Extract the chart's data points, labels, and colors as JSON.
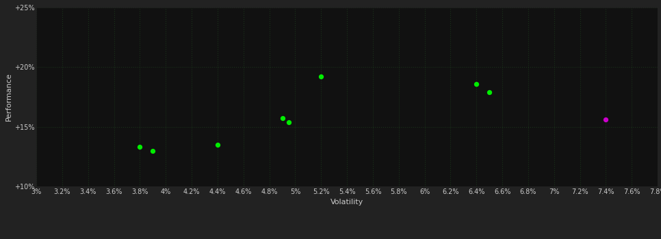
{
  "background_color": "#222222",
  "plot_bg_color": "#111111",
  "grid_color": "#1a321a",
  "text_color": "#cccccc",
  "xlabel": "Volatility",
  "ylabel": "Performance",
  "xlim": [
    0.03,
    0.078
  ],
  "ylim": [
    0.1,
    0.25
  ],
  "xticks": [
    0.03,
    0.032,
    0.034,
    0.036,
    0.038,
    0.04,
    0.042,
    0.044,
    0.046,
    0.048,
    0.05,
    0.052,
    0.054,
    0.056,
    0.058,
    0.06,
    0.062,
    0.064,
    0.066,
    0.068,
    0.07,
    0.072,
    0.074,
    0.076,
    0.078
  ],
  "xtick_labels": [
    "3%",
    "3.2%",
    "3.4%",
    "3.6%",
    "3.8%",
    "4%",
    "4.2%",
    "4.4%",
    "4.6%",
    "4.8%",
    "5%",
    "5.2%",
    "5.4%",
    "5.6%",
    "5.8%",
    "6%",
    "6.2%",
    "6.4%",
    "6.6%",
    "6.8%",
    "7%",
    "7.2%",
    "7.4%",
    "7.6%",
    "7.8%"
  ],
  "yticks": [
    0.1,
    0.15,
    0.2,
    0.25
  ],
  "ytick_labels": [
    "+10%",
    "+15%",
    "+20%",
    "+25%"
  ],
  "green_points": [
    [
      0.038,
      0.133
    ],
    [
      0.039,
      0.13
    ],
    [
      0.044,
      0.135
    ],
    [
      0.049,
      0.157
    ],
    [
      0.0495,
      0.154
    ],
    [
      0.052,
      0.192
    ],
    [
      0.064,
      0.186
    ],
    [
      0.065,
      0.179
    ]
  ],
  "magenta_points": [
    [
      0.074,
      0.156
    ]
  ],
  "green_color": "#00ee00",
  "magenta_color": "#cc00cc",
  "point_size": 18,
  "tick_fontsize": 7,
  "label_fontsize": 8
}
